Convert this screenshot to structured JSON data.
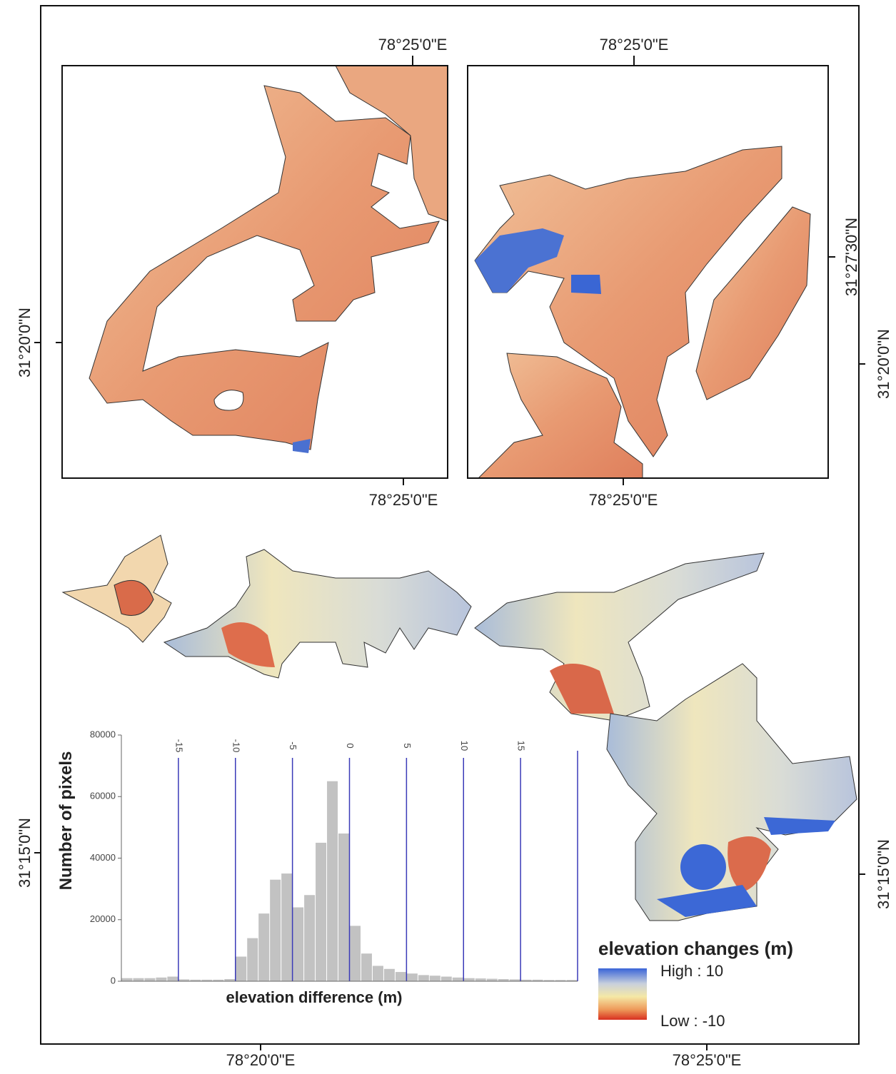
{
  "map": {
    "lon_labels": [
      "78°25'0\"E",
      "78°25'0\"E",
      "78°25'0\"E",
      "78°25'0\"E",
      "78°20'0\"E",
      "78°25'0\"E"
    ],
    "lat_labels": [
      "31°20'0\"N",
      "31°15'0\"N",
      "31°27'30\"N",
      "31°20'0\"N",
      "31°15'0\"N"
    ],
    "legend": {
      "title": "elevation changes (m)",
      "high": "High : 10",
      "low": "Low : -10"
    }
  },
  "chart_data": {
    "type": "histogram",
    "xlabel": "elevation difference (m)",
    "ylabel": "Number of pixels",
    "bins": [
      -20,
      -19,
      -18,
      -17,
      -16,
      -15,
      -14,
      -13,
      -12,
      -11,
      -10,
      -9,
      -8,
      -7,
      -6,
      -5,
      -4,
      -3,
      -2,
      -1,
      0,
      1,
      2,
      3,
      4,
      5,
      6,
      7,
      8,
      9,
      10,
      11,
      12,
      13,
      14,
      15,
      16,
      17,
      18,
      19,
      20
    ],
    "values": [
      1000,
      1000,
      1000,
      1200,
      1500,
      600,
      500,
      500,
      500,
      700,
      8000,
      14000,
      22000,
      33000,
      35000,
      24000,
      28000,
      45000,
      65000,
      48000,
      18000,
      9000,
      5000,
      4000,
      3000,
      2500,
      2000,
      1800,
      1500,
      1200,
      1000,
      900,
      800,
      700,
      600,
      500,
      500,
      400,
      400,
      400
    ],
    "color": "#c2c2c2",
    "xlim": [
      -20,
      20
    ],
    "xticks": [
      -15,
      -10,
      -5,
      0,
      5,
      10,
      15
    ],
    "ylim": [
      0,
      80000
    ],
    "yticks": [
      0,
      20000,
      40000,
      60000,
      80000
    ],
    "grid_color": "#3a3ab8"
  }
}
